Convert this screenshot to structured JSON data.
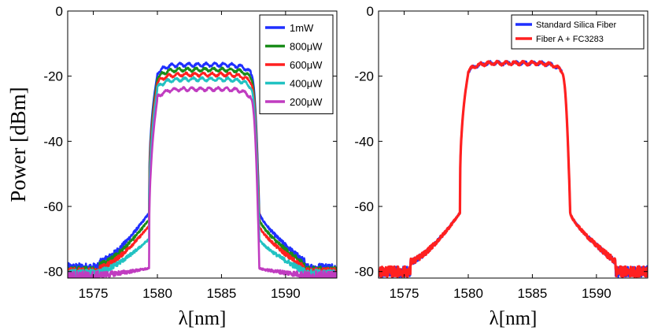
{
  "chart_data": [
    {
      "type": "line",
      "title": "",
      "xlabel": "λ[nm]",
      "ylabel": "Power [dBm]",
      "xlim": [
        1573,
        1594
      ],
      "ylim": [
        -82,
        0
      ],
      "xticks": [
        "1575",
        "1580",
        "1585",
        "1590"
      ],
      "yticks": [
        "0",
        "-20",
        "-40",
        "-60",
        "-80"
      ],
      "legend_position": "top-right",
      "series": [
        {
          "name": "1mW",
          "color": "#1f2fff",
          "top_dbm": -16.5,
          "shoulder_dbm": -62,
          "tail_dbm": -77,
          "floor_dbm": -79
        },
        {
          "name": "800μW",
          "color": "#1a8c1a",
          "top_dbm": -18,
          "shoulder_dbm": -64,
          "tail_dbm": -78,
          "floor_dbm": -80
        },
        {
          "name": "600μW",
          "color": "#ff2020",
          "top_dbm": -19.5,
          "shoulder_dbm": -66,
          "tail_dbm": -79,
          "floor_dbm": -80.5
        },
        {
          "name": "400μW",
          "color": "#22c2c2",
          "top_dbm": -21,
          "shoulder_dbm": -70,
          "tail_dbm": -80,
          "floor_dbm": -81
        },
        {
          "name": "200μW",
          "color": "#c03cc0",
          "top_dbm": -24,
          "shoulder_dbm": -79,
          "tail_dbm": -81,
          "floor_dbm": -81.5
        }
      ]
    },
    {
      "type": "line",
      "title": "",
      "xlabel": "λ[nm]",
      "ylabel": "",
      "xlim": [
        1573,
        1594
      ],
      "ylim": [
        -82,
        0
      ],
      "xticks": [
        "1575",
        "1580",
        "1585",
        "1590"
      ],
      "yticks": [
        "0",
        "-20",
        "-40",
        "-60",
        "-80"
      ],
      "legend_position": "top-right",
      "series": [
        {
          "name": "Standard Silica Fiber",
          "color": "#1f2fff",
          "top_dbm": -16,
          "shoulder_dbm": -62,
          "tail_dbm": -77,
          "floor_dbm": -80
        },
        {
          "name": "Fiber A + FC3283",
          "color": "#ff2020",
          "top_dbm": -16,
          "shoulder_dbm": -62,
          "tail_dbm": -77,
          "floor_dbm": -80
        }
      ]
    }
  ]
}
